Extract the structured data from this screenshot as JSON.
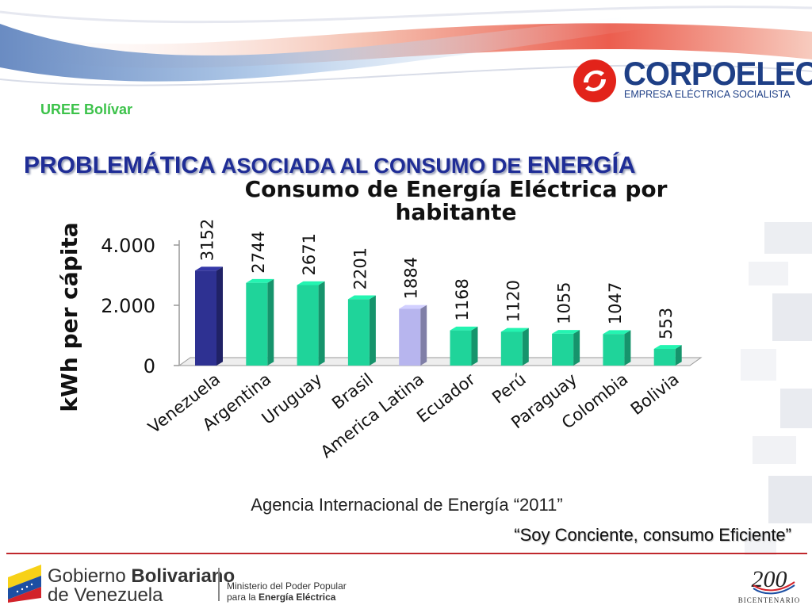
{
  "header": {
    "unit_label": "UREE Bolívar",
    "title_part1": "PROBLEMÁTICA ",
    "title_part2": "ASOCIADA AL CONSUMO DE ",
    "title_part3": "ENERGÍA"
  },
  "logo": {
    "name": "CORPOELEC",
    "subtitle": "EMPRESA ELÉCTRICA SOCIALISTA"
  },
  "chart_data": {
    "type": "bar",
    "title_lines": [
      "Consumo de Energía Eléctrica por",
      "habitante"
    ],
    "ylabel": "kWh per cápita",
    "xlabel": "",
    "ylim": [
      0,
      4000
    ],
    "y_ticks": [
      0,
      2000,
      4000
    ],
    "y_tick_labels": [
      "0",
      "2.000",
      "4.000"
    ],
    "grid": false,
    "categories": [
      "Venezuela",
      "Argentina",
      "Uruguay",
      "Brasil",
      "America Latina",
      "Ecuador",
      "Perú",
      "Paraguay",
      "Colombia",
      "Bolivia"
    ],
    "values": [
      3152,
      2744,
      2671,
      2201,
      1884,
      1168,
      1120,
      1055,
      1047,
      553
    ],
    "colors": [
      "#2e3192",
      "#1fd49a",
      "#1fd49a",
      "#1fd49a",
      "#b7b5ee",
      "#1fd49a",
      "#1fd49a",
      "#1fd49a",
      "#1fd49a",
      "#1fd49a"
    ]
  },
  "footer": {
    "source": "Agencia Internacional de Energía “2011”",
    "slogan": "“Soy Conciente, consumo Eficiente”",
    "gob_bold_prefix": "Gobierno ",
    "gob_bold": "Bolivariano",
    "gob_line2": "de Venezuela",
    "ministry_line1": "Ministerio del Poder Popular",
    "ministry_line2_prefix": "para la ",
    "ministry_line2_bold": "Energía Eléctrica",
    "bicentenario_number": "200",
    "bicentenario_label": "BICENTENARIO"
  },
  "colors": {
    "accent_red": "#c0282d",
    "brand_blue": "#1e3f86",
    "title_blue": "#1f2d96",
    "green": "#3cc24a"
  }
}
